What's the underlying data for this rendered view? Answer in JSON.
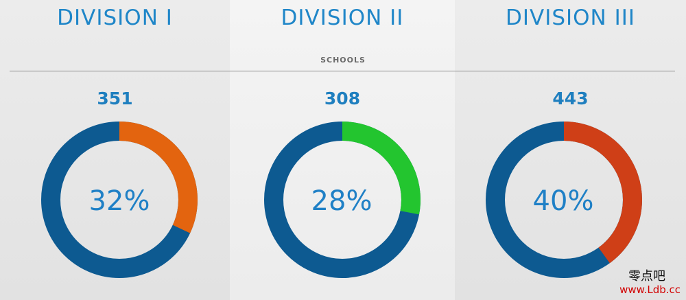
{
  "header": {
    "division_titles": [
      "DIVISION I",
      "DIVISION II",
      "DIVISION III"
    ],
    "metric_label": "SCHOOLS"
  },
  "chart_data": [
    {
      "type": "pie",
      "title": "DIVISION I",
      "count": 351,
      "percent": 32,
      "percent_label": "32%",
      "colors": {
        "highlight": "#e3640f",
        "remainder": "#0d5a91"
      }
    },
    {
      "type": "pie",
      "title": "DIVISION II",
      "count": 308,
      "percent": 28,
      "percent_label": "28%",
      "colors": {
        "highlight": "#23c52f",
        "remainder": "#0d5a91"
      }
    },
    {
      "type": "pie",
      "title": "DIVISION III",
      "count": 443,
      "percent": 40,
      "percent_label": "40%",
      "colors": {
        "highlight": "#cf3f17",
        "remainder": "#0d5a91"
      }
    }
  ],
  "watermark": {
    "cn": "零点吧",
    "url": "www.Ldb.cc"
  }
}
